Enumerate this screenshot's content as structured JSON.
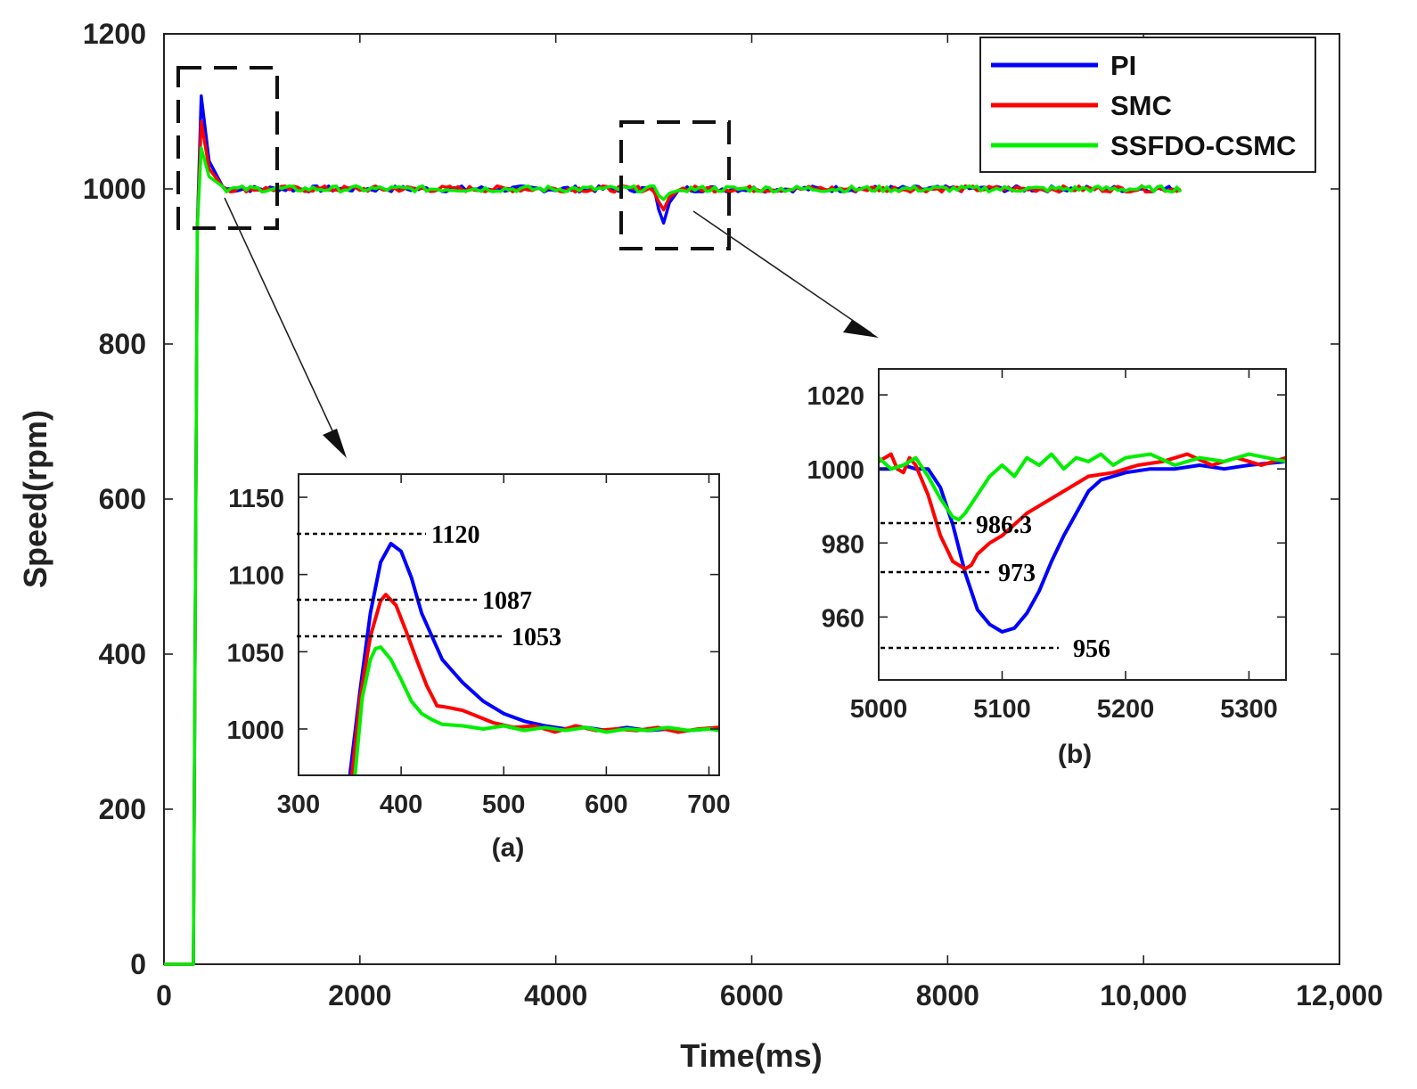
{
  "chart_data": {
    "type": "line",
    "title": "",
    "xlabel": "Time(ms)",
    "ylabel": "Speed(rpm)",
    "xlim": [
      0,
      12000
    ],
    "ylim": [
      0,
      1200
    ],
    "x_tick_labels": [
      "0",
      "2000",
      "4000",
      "6000",
      "8000",
      "10,000",
      "12,000"
    ],
    "y_tick_labels": [
      "0",
      "200",
      "400",
      "600",
      "800",
      "1000",
      "1200"
    ],
    "legend_position": "top-right",
    "reference_speed": 1000,
    "series": [
      {
        "name": "PI",
        "color": "#0000ff",
        "step_time": 300,
        "start_overshoot_peak": 1120,
        "load_step_dip": 956
      },
      {
        "name": "SMC",
        "color": "#ff0000",
        "step_time": 300,
        "start_overshoot_peak": 1087,
        "load_step_dip": 973
      },
      {
        "name": "SSFDO-CSMC",
        "color": "#00ee00",
        "step_time": 300,
        "start_overshoot_peak": 1053,
        "load_step_dip": 986.3
      }
    ],
    "insets": [
      {
        "caption": "(a)",
        "xlim": [
          300,
          710
        ],
        "ylim": [
          970,
          1165
        ],
        "x_tick_labels": [
          "300",
          "400",
          "500",
          "600",
          "700"
        ],
        "y_tick_labels": [
          "1000",
          "1050",
          "1100",
          "1150"
        ],
        "annotations": [
          "1120",
          "1087",
          "1053"
        ],
        "series": [
          {
            "name": "PI",
            "x": [
              350,
              360,
              370,
              380,
              390,
              400,
              410,
              420,
              440,
              460,
              480,
              500,
              520,
              540,
              560,
              580,
              600,
              620,
              640,
              660,
              680,
              700,
              710
            ],
            "y": [
              970,
              1025,
              1075,
              1108,
              1120,
              1115,
              1098,
              1075,
              1045,
              1030,
              1018,
              1010,
              1005,
              1002,
              1000,
              1001,
              999,
              1001,
              999,
              1000,
              999,
              1000,
              1000
            ]
          },
          {
            "name": "SMC",
            "x": [
              352,
              360,
              370,
              380,
              385,
              395,
              405,
              415,
              425,
              435,
              445,
              460,
              475,
              490,
              510,
              530,
              550,
              570,
              590,
              610,
              630,
              650,
              670,
              690,
              710
            ],
            "y": [
              970,
              1020,
              1060,
              1083,
              1087,
              1080,
              1063,
              1045,
              1028,
              1015,
              1014,
              1012,
              1008,
              1004,
              1001,
              1002,
              998,
              1002,
              999,
              1000,
              999,
              1001,
              998,
              1000,
              1001
            ]
          },
          {
            "name": "SSFDO-CSMC",
            "x": [
              355,
              362,
              370,
              375,
              380,
              390,
              400,
              410,
              420,
              430,
              440,
              460,
              480,
              500,
              520,
              540,
              560,
              580,
              600,
              620,
              640,
              660,
              680,
              700,
              710
            ],
            "y": [
              970,
              1020,
              1045,
              1052,
              1053,
              1045,
              1032,
              1018,
              1010,
              1006,
              1003,
              1002,
              1000,
              1002,
              999,
              1001,
              999,
              1001,
              998,
              1000,
              999,
              1001,
              999,
              1000,
              999
            ]
          }
        ]
      },
      {
        "caption": "(b)",
        "xlim": [
          5000,
          5330
        ],
        "ylim": [
          943,
          1027
        ],
        "x_tick_labels": [
          "5000",
          "5100",
          "5200",
          "5300"
        ],
        "y_tick_labels": [
          "960",
          "980",
          "1000",
          "1020"
        ],
        "annotations": [
          "986.3",
          "973",
          "956"
        ],
        "series": [
          {
            "name": "PI",
            "x": [
              5000,
              5010,
              5020,
              5030,
              5040,
              5050,
              5060,
              5070,
              5080,
              5090,
              5100,
              5110,
              5120,
              5130,
              5140,
              5150,
              5160,
              5170,
              5180,
              5190,
              5200,
              5220,
              5240,
              5260,
              5280,
              5300,
              5330
            ],
            "y": [
              1000,
              1000,
              1001,
              1000,
              1000,
              995,
              985,
              972,
              962,
              958,
              956,
              957,
              961,
              967,
              975,
              982,
              988,
              994,
              997,
              998,
              999,
              1000,
              1000,
              1001,
              1000,
              1001,
              1002
            ]
          },
          {
            "name": "SMC",
            "x": [
              5000,
              5010,
              5015,
              5020,
              5025,
              5030,
              5040,
              5050,
              5060,
              5070,
              5075,
              5080,
              5090,
              5100,
              5110,
              5120,
              5130,
              5140,
              5150,
              5170,
              5190,
              5210,
              5230,
              5250,
              5270,
              5290,
              5310,
              5330
            ],
            "y": [
              1002,
              1004,
              1000,
              999,
              1003,
              1001,
              993,
              982,
              975,
              973,
              974,
              977,
              980,
              982,
              985,
              988,
              990,
              992,
              994,
              998,
              999,
              1001,
              1002,
              1004,
              1001,
              1003,
              1001,
              1003
            ]
          },
          {
            "name": "SSFDO-CSMC",
            "x": [
              5000,
              5010,
              5020,
              5030,
              5040,
              5050,
              5060,
              5065,
              5070,
              5080,
              5090,
              5100,
              5110,
              5120,
              5130,
              5140,
              5150,
              5160,
              5170,
              5180,
              5190,
              5200,
              5220,
              5240,
              5260,
              5280,
              5300,
              5330
            ],
            "y": [
              1003,
              1000,
              1001,
              1003,
              998,
              992,
              987,
              986.3,
              988,
              993,
              998,
              1001,
              998,
              1003,
              1001,
              1004,
              1000,
              1003,
              1002,
              1004,
              1001,
              1003,
              1004,
              1001,
              1003,
              1002,
              1004,
              1002
            ]
          }
        ]
      }
    ]
  }
}
